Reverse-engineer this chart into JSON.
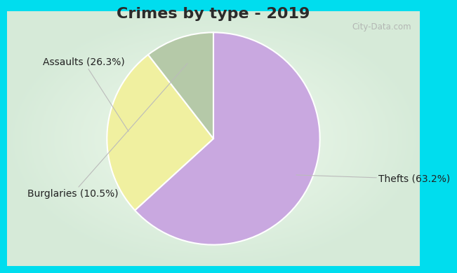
{
  "title": "Crimes by type - 2019",
  "slices": [
    {
      "label": "Thefts (63.2%)",
      "value": 63.2,
      "color": "#C9A8E0"
    },
    {
      "label": "Assaults (26.3%)",
      "value": 26.3,
      "color": "#F0F0A0"
    },
    {
      "label": "Burglaries (10.5%)",
      "value": 10.5,
      "color": "#B5C9A8"
    }
  ],
  "background_top": "#00DDEE",
  "title_fontsize": 16,
  "label_fontsize": 10,
  "watermark": "City-Data.com",
  "title_color": "#2a2a2a",
  "label_color": "#222222",
  "watermark_color": "#aaaaaa",
  "pie_edge_color": "white",
  "pie_edge_width": 1.5,
  "start_angle": 90,
  "bg_center_color": "#f0faf5",
  "bg_edge_color": "#c8e8d8"
}
